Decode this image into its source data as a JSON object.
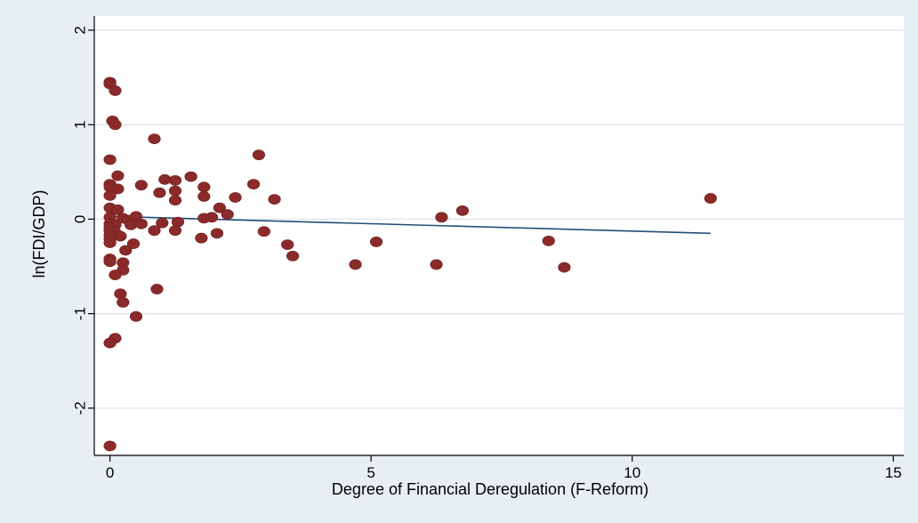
{
  "chart_data": {
    "type": "scatter",
    "title": "",
    "xlabel": "Degree of Financial Deregulation (F-Reform)",
    "ylabel": "ln(FDI/GDP)",
    "xlim": [
      -0.3,
      15.2
    ],
    "ylim": [
      -2.5,
      2.15
    ],
    "xticks": [
      0,
      5,
      10,
      15
    ],
    "yticks": [
      -2,
      -1,
      0,
      1,
      2
    ],
    "xtick_labels": [
      "0",
      "5",
      "10",
      "15"
    ],
    "ytick_labels": [
      "-2",
      "-1",
      "0",
      "1",
      "2"
    ],
    "grid": "horizontal",
    "legend": "none",
    "colors": {
      "background": "#e8eff3",
      "plot_area": "#ffffff",
      "gridline": "#dbe5eb",
      "marker": "#8b2a2a",
      "fit_line": "#1f4e79"
    },
    "series": [
      {
        "type": "scatter",
        "points": [
          [
            0.0,
            1.45
          ],
          [
            0.0,
            1.43
          ],
          [
            0.1,
            1.36
          ],
          [
            0.05,
            1.04
          ],
          [
            0.1,
            1.0
          ],
          [
            0.0,
            0.63
          ],
          [
            0.15,
            0.46
          ],
          [
            0.0,
            0.37
          ],
          [
            0.0,
            0.34
          ],
          [
            0.15,
            0.32
          ],
          [
            0.0,
            0.25
          ],
          [
            0.0,
            0.12
          ],
          [
            0.15,
            0.1
          ],
          [
            0.0,
            0.02
          ],
          [
            0.25,
            0.01
          ],
          [
            0.35,
            -0.01
          ],
          [
            0.0,
            -0.05
          ],
          [
            0.1,
            -0.06
          ],
          [
            0.0,
            -0.09
          ],
          [
            0.0,
            -0.12
          ],
          [
            0.1,
            -0.14
          ],
          [
            0.0,
            -0.17
          ],
          [
            0.2,
            -0.18
          ],
          [
            0.0,
            -0.21
          ],
          [
            0.0,
            -0.25
          ],
          [
            0.3,
            -0.33
          ],
          [
            0.0,
            -0.42
          ],
          [
            0.0,
            -0.45
          ],
          [
            0.25,
            -0.46
          ],
          [
            0.25,
            -0.54
          ],
          [
            0.1,
            -0.59
          ],
          [
            0.2,
            -0.79
          ],
          [
            0.25,
            -0.88
          ],
          [
            0.5,
            -1.03
          ],
          [
            0.1,
            -1.26
          ],
          [
            0.0,
            -1.31
          ],
          [
            0.0,
            -2.4
          ],
          [
            0.5,
            0.03
          ],
          [
            0.4,
            -0.06
          ],
          [
            0.6,
            -0.05
          ],
          [
            0.45,
            -0.26
          ],
          [
            0.6,
            0.36
          ],
          [
            0.85,
            0.85
          ],
          [
            0.85,
            -0.12
          ],
          [
            0.95,
            0.28
          ],
          [
            1.05,
            0.42
          ],
          [
            1.0,
            -0.04
          ],
          [
            0.9,
            -0.74
          ],
          [
            1.25,
            0.41
          ],
          [
            1.25,
            0.3
          ],
          [
            1.25,
            0.2
          ],
          [
            1.3,
            -0.03
          ],
          [
            1.25,
            -0.12
          ],
          [
            1.55,
            0.45
          ],
          [
            1.8,
            0.34
          ],
          [
            1.8,
            0.24
          ],
          [
            1.8,
            0.01
          ],
          [
            1.75,
            -0.2
          ],
          [
            1.95,
            0.02
          ],
          [
            2.1,
            0.12
          ],
          [
            2.05,
            -0.15
          ],
          [
            2.25,
            0.05
          ],
          [
            2.4,
            0.23
          ],
          [
            2.75,
            0.37
          ],
          [
            2.85,
            0.68
          ],
          [
            2.95,
            -0.13
          ],
          [
            3.15,
            0.21
          ],
          [
            3.4,
            -0.27
          ],
          [
            3.5,
            -0.39
          ],
          [
            4.7,
            -0.48
          ],
          [
            5.1,
            -0.24
          ],
          [
            6.25,
            -0.48
          ],
          [
            6.35,
            0.02
          ],
          [
            6.75,
            0.09
          ],
          [
            8.4,
            -0.23
          ],
          [
            8.7,
            -0.51
          ],
          [
            11.5,
            0.22
          ]
        ]
      },
      {
        "type": "line",
        "points": [
          [
            0.0,
            0.03
          ],
          [
            11.5,
            -0.15
          ]
        ]
      }
    ]
  }
}
